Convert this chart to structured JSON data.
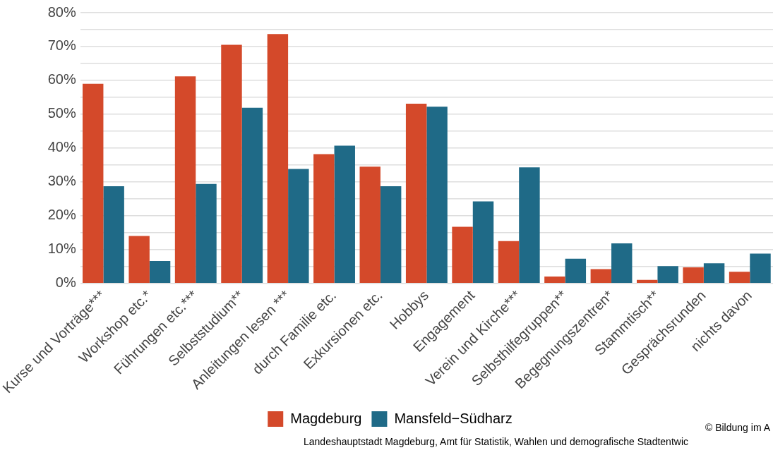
{
  "chart_data": {
    "type": "bar",
    "categories": [
      "Kurse und Vorträge***",
      "Workshop etc.*",
      "Führungen etc.***",
      "Selbststudium**",
      "Anleitungen lesen ***",
      "durch Familie etc.",
      "Exkursionen etc.",
      "Hobbys",
      "Engagement",
      "Verein und Kirche***",
      "Selbsthilfegruppen**",
      "Begegnungszentren*",
      "Stammtisch**",
      "Gesprächsrunden",
      "nichts davon"
    ],
    "series": [
      {
        "name": "Magdeburg",
        "color": "#d4492a",
        "values": [
          59.0,
          14.0,
          61.2,
          70.5,
          73.7,
          38.2,
          34.5,
          53.1,
          16.7,
          12.5,
          2.0,
          4.2,
          1.0,
          4.7,
          3.4
        ]
      },
      {
        "name": "Mansfeld−Südharz",
        "color": "#1f6a87",
        "values": [
          28.7,
          6.6,
          29.4,
          51.9,
          33.8,
          40.7,
          28.7,
          52.2,
          24.2,
          34.3,
          7.3,
          11.8,
          5.1,
          5.9,
          8.8
        ]
      }
    ],
    "ylim": [
      0,
      80
    ],
    "yticks": [
      {
        "value": 0,
        "label": "0%"
      },
      {
        "value": 5,
        "label": null
      },
      {
        "value": 10,
        "label": "10%"
      },
      {
        "value": 15,
        "label": null
      },
      {
        "value": 20,
        "label": "20%"
      },
      {
        "value": 25,
        "label": null
      },
      {
        "value": 30,
        "label": "30%"
      },
      {
        "value": 35,
        "label": null
      },
      {
        "value": 40,
        "label": "40%"
      },
      {
        "value": 45,
        "label": null
      },
      {
        "value": 50,
        "label": "50%"
      },
      {
        "value": 55,
        "label": null
      },
      {
        "value": 60,
        "label": "60%"
      },
      {
        "value": 65,
        "label": null
      },
      {
        "value": 70,
        "label": "70%"
      },
      {
        "value": 75,
        "label": null
      },
      {
        "value": 80,
        "label": "80%"
      }
    ],
    "grid": "y",
    "legend": "bottom",
    "annotations": [
      "© Bildung im A",
      "Landeshauptstadt Magdeburg, Amt für Statistik, Wahlen und demografische Stadtentwic"
    ]
  }
}
